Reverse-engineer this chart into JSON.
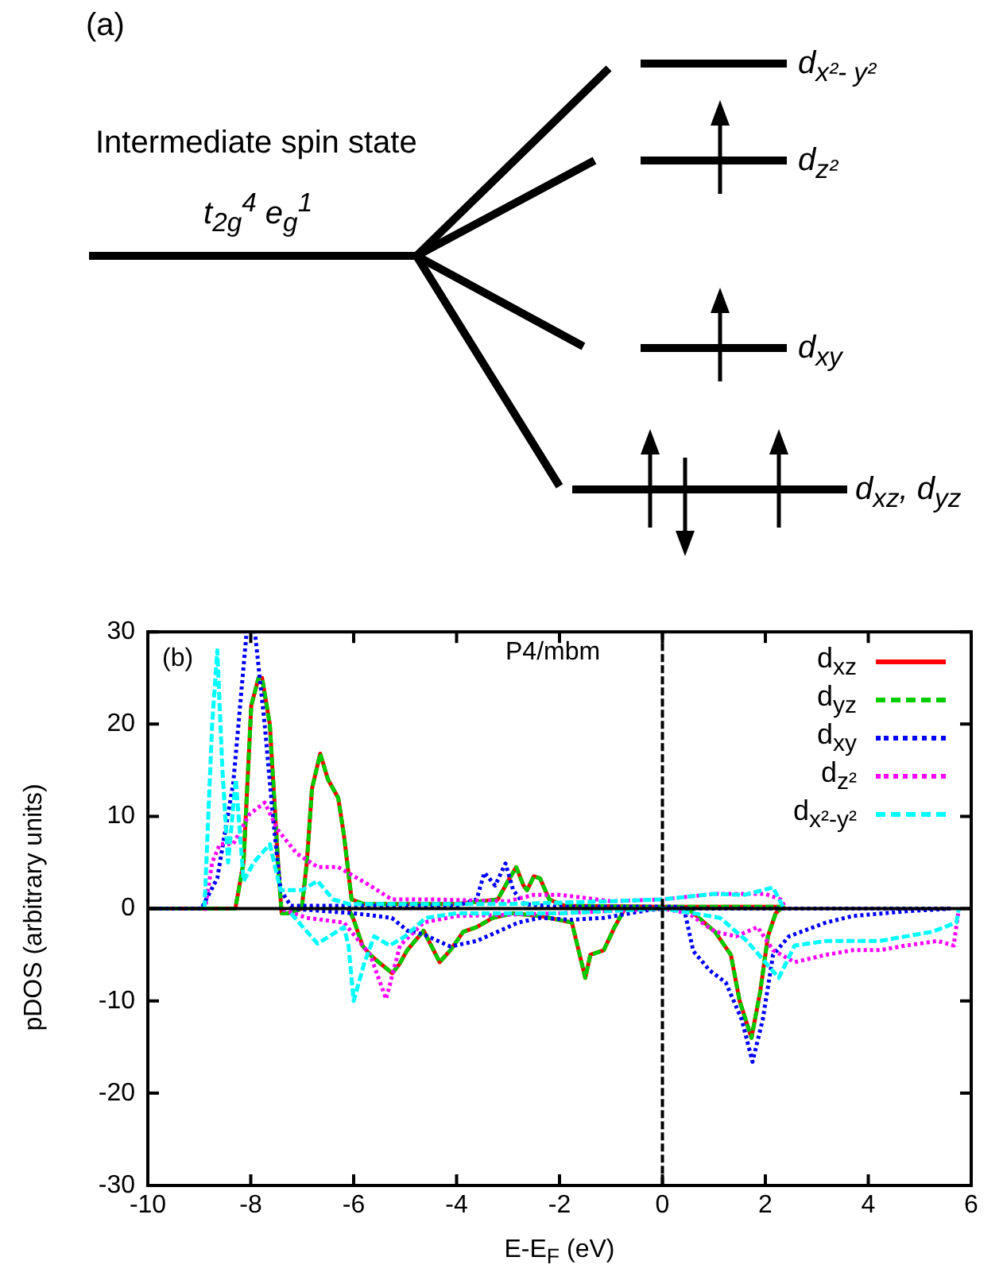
{
  "chart_data": [
    {
      "type": "other",
      "annotations": [
        "(a)",
        "Intermediate spin state",
        "t$_{2g}$$^{4}$ e$_{g}$$^{1}$",
        "d$_{x²- y²}$",
        "d$_{z²}$",
        "d$_{xy}$",
        "d$_{xz}$, d$_{yz}$"
      ]
    },
    {
      "type": "line",
      "xlabel": "E-E$_{F}$ (eV)",
      "ylabel": "pDOS (arbitrary units)",
      "xlim": [
        -10,
        6
      ],
      "ylim": [
        -30,
        30
      ],
      "xticks": [
        -10,
        -8,
        -6,
        -4,
        -2,
        0,
        2,
        4,
        6
      ],
      "yticks": [
        -30,
        -20,
        -10,
        0,
        10,
        20,
        30
      ],
      "legend": "top right",
      "annotations": [
        "(b)",
        "P4/mbm"
      ],
      "ref_lines": [
        {
          "axis": "x",
          "value": 0,
          "line_style": "dashed",
          "color": "#000000"
        },
        {
          "axis": "y",
          "value": 0,
          "line_style": "solid",
          "color": "#000000"
        }
      ],
      "series": [
        {
          "name": "d$_{xz}$",
          "color": "#ff0000",
          "line_style": "solid",
          "x": [
            -10,
            -8.3,
            -8.14,
            -7.99,
            -7.85,
            -7.78,
            -7.63,
            -7.47,
            -7.4,
            -7.27,
            -7.01,
            -6.91,
            -6.81,
            -6.65,
            -6.5,
            -6.3,
            -6.19,
            -6.04,
            -5.8,
            -4,
            -3.2,
            -3.0,
            -2.84,
            -2.7,
            -2.63,
            -2.5,
            -2.38,
            -2.2,
            -1.9,
            0,
            2.3,
            2.4,
            null,
            -6.1,
            -6.0,
            -5.83,
            -5.68,
            -5.47,
            -5.25,
            -5.11,
            -4.96,
            -4.64,
            -4.33,
            -4.12,
            -3.87,
            -3.61,
            -3.3,
            -2.9,
            -2.38,
            -1.76,
            -1.5,
            -1.4,
            -1.14,
            -0.93,
            -0.73,
            0.5,
            1.02,
            1.33,
            1.5,
            1.73,
            1.9,
            2.05,
            2.2,
            2.3
          ],
          "values": [
            0,
            0,
            5,
            22,
            25,
            25,
            20,
            5,
            -0.5,
            -0.5,
            0,
            5,
            13,
            16.8,
            14,
            12,
            8,
            1,
            0.5,
            0.5,
            1,
            3,
            4.5,
            2.5,
            2,
            3.5,
            3.3,
            1,
            0.3,
            0.2,
            0.2,
            0,
            null,
            0,
            -1.2,
            -4,
            -5,
            -6,
            -7,
            -6,
            -4.5,
            -2.4,
            -5.8,
            -4.5,
            -2.5,
            -2,
            -1,
            -0.5,
            -0.8,
            -1.5,
            -7.5,
            -5,
            -4.5,
            -2,
            0,
            0,
            -2.5,
            -5,
            -10,
            -14,
            -9,
            -3,
            -0.5,
            0
          ]
        },
        {
          "name": "d$_{yz}$",
          "color": "#00cc00",
          "line_style": "dashed",
          "x": [
            -10,
            -8.3,
            -8.14,
            -7.99,
            -7.85,
            -7.78,
            -7.63,
            -7.47,
            -7.4,
            -7.27,
            -7.01,
            -6.91,
            -6.81,
            -6.65,
            -6.5,
            -6.3,
            -6.19,
            -6.04,
            -5.8,
            -4,
            -3.2,
            -3.0,
            -2.84,
            -2.7,
            -2.63,
            -2.5,
            -2.38,
            -2.2,
            -1.9,
            0,
            2.3,
            2.4,
            null,
            -6.1,
            -6.0,
            -5.83,
            -5.68,
            -5.47,
            -5.25,
            -5.11,
            -4.96,
            -4.64,
            -4.33,
            -4.12,
            -3.87,
            -3.61,
            -3.3,
            -2.9,
            -2.38,
            -1.76,
            -1.5,
            -1.4,
            -1.14,
            -0.93,
            -0.73,
            0.5,
            1.02,
            1.33,
            1.5,
            1.73,
            1.9,
            2.05,
            2.2,
            2.3
          ],
          "values": [
            0,
            0,
            5,
            22,
            25,
            25,
            20,
            5,
            -0.5,
            -0.5,
            0,
            5,
            13,
            16.8,
            14,
            12,
            8,
            1,
            0.5,
            0.5,
            1,
            3,
            4.5,
            2.5,
            2,
            3.5,
            3.3,
            1,
            0.3,
            0.2,
            0.2,
            0,
            null,
            0,
            -1.2,
            -4,
            -5,
            -6,
            -7,
            -6,
            -4.5,
            -2.4,
            -5.8,
            -4.5,
            -2.5,
            -2,
            -1,
            -0.5,
            -0.8,
            -1.5,
            -7.5,
            -5,
            -4.5,
            -2,
            0,
            0,
            -2.5,
            -5,
            -10,
            -14,
            -9,
            -3,
            -0.5,
            0
          ]
        },
        {
          "name": "d$_{xy}$",
          "color": "#0000ff",
          "line_style": "dotted",
          "x": [
            -10,
            -8.96,
            -8.65,
            -8.34,
            -8.08,
            null,
            -7.92,
            -7.73,
            -7.57,
            -7.42,
            -7.22,
            -4,
            -3.61,
            -3.46,
            -3.25,
            -3.05,
            -2.9,
            -2.69,
            -2,
            0.3,
            0.42,
            5.6,
            null,
            -7.2,
            -6,
            -5.26,
            -4.95,
            -4.64,
            -4.12,
            -3.61,
            -3.2,
            -2.8,
            -2.38,
            -1.76,
            -1.14,
            -0.32,
            0,
            0.42,
            0.6,
            0.92,
            1.23,
            1.54,
            1.75,
            1.95,
            2.15,
            2.46,
            3.18,
            3.7,
            4.7,
            5.6
          ],
          "values": [
            0,
            0,
            3.3,
            13.6,
            30,
            null,
            30,
            20,
            10,
            2,
            0.3,
            0.3,
            1,
            3.9,
            2.5,
            4.9,
            2,
            0.5,
            0.2,
            0.2,
            0,
            0,
            null,
            0,
            -0.5,
            -1,
            -2.4,
            -2.8,
            -4.1,
            -3.5,
            -2.5,
            -1.5,
            -1,
            -1.2,
            -1,
            -0.2,
            0,
            0,
            -4.6,
            -6.7,
            -8,
            -12,
            -16.6,
            -12,
            -5,
            -3,
            -1.5,
            -0.8,
            -0.3,
            0
          ]
        },
        {
          "name": "d$_{z²}$",
          "color": "#ff00ff",
          "line_style": "dotted",
          "x": [
            -8.9,
            -8.75,
            -8.6,
            -8.34,
            -8.03,
            -7.73,
            -7.47,
            -7.11,
            -6.7,
            -6.3,
            -5.99,
            -5.68,
            -5.26,
            -4.5,
            -3,
            -2.5,
            -2,
            -1,
            0,
            1,
            2,
            2.3,
            2.4,
            null,
            -7.42,
            -6.91,
            -6.19,
            -5.68,
            -5.37,
            -5.1,
            -4.64,
            -4,
            -2,
            0,
            0.5,
            1.02,
            1.43,
            1.85,
            2.15,
            2.57,
            3.18,
            3.7,
            4.22,
            4.73,
            5.35,
            5.66,
            5.76
          ],
          "values": [
            -0.5,
            5,
            7,
            7,
            10.2,
            11.5,
            8.5,
            6,
            4.5,
            4.5,
            3.5,
            2.5,
            1,
            1,
            0.8,
            1.5,
            1.5,
            0.8,
            1,
            1.6,
            1.6,
            1,
            0,
            null,
            0,
            -1,
            -1.5,
            -5,
            -9.8,
            -4,
            -1.5,
            -0.8,
            -0.5,
            0,
            -0.5,
            -2.5,
            -3,
            -2,
            -4.5,
            -5.8,
            -5,
            -4.5,
            -4.5,
            -4,
            -3.5,
            -4,
            0
          ]
        },
        {
          "name": "d$_{x²-y²}$",
          "color": "#00ffff",
          "line_style": "dashed",
          "x": [
            -8.9,
            -8.75,
            -8.65,
            -8.55,
            -8.44,
            -8.29,
            -8.14,
            -7.94,
            -7.63,
            -7.42,
            -7.01,
            -6.7,
            -6.4,
            -6.09,
            -3,
            -1,
            0,
            1,
            1.6,
            2.15,
            2.36,
            null,
            -7.22,
            -6.7,
            -6.19,
            -6.1,
            -6.0,
            -5.8,
            -5.6,
            -5.3,
            -5.0,
            -4.6,
            -4,
            -2,
            0,
            0.6,
            1.12,
            1.64,
            2.26,
            2.57,
            3.18,
            4.22,
            5.25,
            5.71,
            5.76
          ],
          "values": [
            0,
            20,
            28,
            15,
            5,
            14,
            3,
            5,
            7,
            2,
            2,
            3,
            1,
            0.5,
            0.5,
            0.8,
            1,
            1.6,
            1.5,
            2.3,
            0,
            null,
            -0.5,
            -3.8,
            -2,
            -4,
            -10,
            -6,
            -3,
            -4,
            -3,
            -1,
            -0.5,
            -0.5,
            0,
            -0.5,
            -1,
            -3.5,
            -7.5,
            -4,
            -3.5,
            -3.5,
            -2.5,
            -1.5,
            0
          ]
        }
      ]
    }
  ]
}
